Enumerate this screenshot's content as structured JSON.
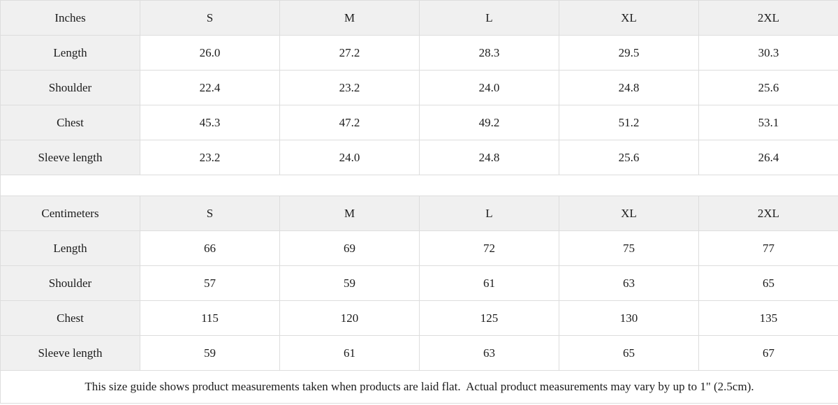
{
  "chart_data": [
    {
      "type": "table",
      "title": "Inches",
      "columns": [
        "Inches",
        "S",
        "M",
        "L",
        "XL",
        "2XL"
      ],
      "rows": [
        [
          "Length",
          "26.0",
          "27.2",
          "28.3",
          "29.5",
          "30.3"
        ],
        [
          "Shoulder",
          "22.4",
          "23.2",
          "24.0",
          "24.8",
          "25.6"
        ],
        [
          "Chest",
          "45.3",
          "47.2",
          "49.2",
          "51.2",
          "53.1"
        ],
        [
          "Sleeve length",
          "23.2",
          "24.0",
          "24.8",
          "25.6",
          "26.4"
        ]
      ]
    },
    {
      "type": "table",
      "title": "Centimeters",
      "columns": [
        "Centimeters",
        "S",
        "M",
        "L",
        "XL",
        "2XL"
      ],
      "rows": [
        [
          "Length",
          "66",
          "69",
          "72",
          "75",
          "77"
        ],
        [
          "Shoulder",
          "57",
          "59",
          "61",
          "63",
          "65"
        ],
        [
          "Chest",
          "115",
          "120",
          "125",
          "130",
          "135"
        ],
        [
          "Sleeve length",
          "59",
          "61",
          "63",
          "65",
          "67"
        ]
      ]
    }
  ],
  "footer": {
    "note": "This size guide shows product measurements taken when products are laid flat.  Actual product measurements may vary by up to 1\" (2.5cm)."
  },
  "colors": {
    "header_bg": "#f0f0f0",
    "label_bg": "#f0f0f0",
    "cell_bg": "#ffffff",
    "border": "#dddddd",
    "text": "#1c1c1c"
  }
}
